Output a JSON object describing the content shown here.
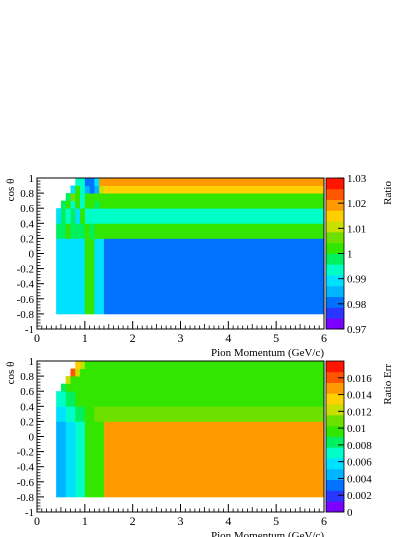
{
  "chart_data": [
    {
      "type": "heatmap",
      "title": "",
      "xlabel": "Pion Momentum (GeV/c)",
      "ylabel": "cos θ",
      "zlabel": "Ratio",
      "xlim": [
        0,
        6
      ],
      "ylim": [
        -1,
        1
      ],
      "zlim": [
        0.97,
        1.03
      ],
      "x_ticks": [
        "0",
        "1",
        "2",
        "3",
        "4",
        "5",
        "6"
      ],
      "y_ticks": [
        "-1",
        "-0.8",
        "-0.6",
        "-0.4",
        "-0.2",
        "0",
        "0.2",
        "0.4",
        "0.6",
        "0.8",
        "1"
      ],
      "z_ticks": [
        "0.97",
        "0.98",
        "0.99",
        "1",
        "1.01",
        "1.02",
        "1.03"
      ],
      "colorscale": [
        "#7a00ff",
        "#2a36ff",
        "#0072ff",
        "#00b4ff",
        "#00e0ff",
        "#00ffc8",
        "#00f060",
        "#33e600",
        "#6ee000",
        "#c8e000",
        "#ffd000",
        "#ff9a00",
        "#ff5500",
        "#ff1500"
      ],
      "x_edges": [
        0.4,
        0.5,
        0.6,
        0.7,
        0.8,
        0.9,
        1.0,
        1.1,
        1.2,
        1.3,
        1.4,
        6.0
      ],
      "y_edges": [
        -0.8,
        0.2,
        0.4,
        0.6,
        0.7,
        0.8,
        0.9,
        1.0
      ],
      "cells": [
        [
          0.989,
          0.989,
          0.99,
          0.989,
          0.99,
          0.99,
          1.0,
          1.0,
          0.99,
          0.99,
          0.98
        ],
        [
          0.996,
          0.998,
          1.001,
          0.999,
          0.998,
          0.999,
          1.001,
          0.999,
          1.001,
          1.001,
          1.001
        ],
        [
          0.99,
          0.999,
          0.992,
          0.999,
          0.99,
          1.001,
          0.992,
          0.993,
          0.992,
          0.994,
          0.993
        ],
        [
          null,
          0.996,
          1.003,
          0.994,
          1.003,
          0.994,
          1.003,
          1.0,
          0.998,
          1.0,
          1.001
        ],
        [
          null,
          null,
          0.997,
          1.006,
          1.004,
          0.994,
          1.004,
          1.004,
          1.004,
          1.004,
          1.004
        ],
        [
          null,
          null,
          null,
          0.99,
          1.0,
          0.993,
          0.985,
          0.98,
          0.986,
          1.01,
          1.016
        ],
        [
          null,
          null,
          null,
          null,
          0.993,
          0.993,
          0.98,
          0.98,
          0.99,
          1.018,
          1.018
        ]
      ]
    },
    {
      "type": "heatmap",
      "title": "",
      "xlabel": "Pion Momentum (GeV/c)",
      "ylabel": "cos θ",
      "zlabel": "Ratio Err",
      "xlim": [
        0,
        6
      ],
      "ylim": [
        -1,
        1
      ],
      "zlim": [
        0,
        0.018
      ],
      "x_ticks": [
        "0",
        "1",
        "2",
        "3",
        "4",
        "5",
        "6"
      ],
      "y_ticks": [
        "-1",
        "-0.8",
        "-0.6",
        "-0.4",
        "-0.2",
        "0",
        "0.2",
        "0.4",
        "0.6",
        "0.8",
        "1"
      ],
      "z_ticks": [
        "0",
        "0.002",
        "0.004",
        "0.006",
        "0.008",
        "0.01",
        "0.012",
        "0.014",
        "0.016"
      ],
      "colorscale": [
        "#7a00ff",
        "#2a36ff",
        "#0072ff",
        "#00b4ff",
        "#00e0ff",
        "#00ffc8",
        "#00f060",
        "#33e600",
        "#6ee000",
        "#c8e000",
        "#ffd000",
        "#ff9a00",
        "#ff5500",
        "#ff1500"
      ],
      "x_edges": [
        0.4,
        0.5,
        0.6,
        0.7,
        0.8,
        0.9,
        1.0,
        1.1,
        1.2,
        1.3,
        1.4,
        6.0
      ],
      "y_edges": [
        -0.8,
        0.2,
        0.4,
        0.6,
        0.7,
        0.8,
        0.9,
        1.0
      ],
      "cells": [
        [
          0.005,
          0.005,
          0.006,
          0.006,
          0.007,
          0.0075,
          0.009,
          0.009,
          0.01,
          0.01,
          0.0145
        ],
        [
          0.0055,
          0.006,
          0.0065,
          0.007,
          0.008,
          0.0085,
          0.0095,
          0.01,
          0.0105,
          0.0105,
          0.0105
        ],
        [
          0.007,
          0.007,
          0.008,
          0.0085,
          0.009,
          0.009,
          0.01,
          0.01,
          0.01,
          0.01,
          0.01
        ],
        [
          null,
          0.0085,
          0.009,
          0.0095,
          0.01,
          0.01,
          0.01,
          0.01,
          0.01,
          0.01,
          0.01
        ],
        [
          null,
          null,
          0.012,
          0.01,
          0.01,
          0.01,
          0.01,
          0.01,
          0.01,
          0.01,
          0.01
        ],
        [
          null,
          null,
          null,
          0.016,
          0.012,
          0.01,
          0.01,
          0.01,
          0.01,
          0.01,
          0.01
        ],
        [
          null,
          null,
          null,
          null,
          0.013,
          0.012,
          0.01,
          0.01,
          0.01,
          0.01,
          0.01
        ]
      ]
    }
  ]
}
